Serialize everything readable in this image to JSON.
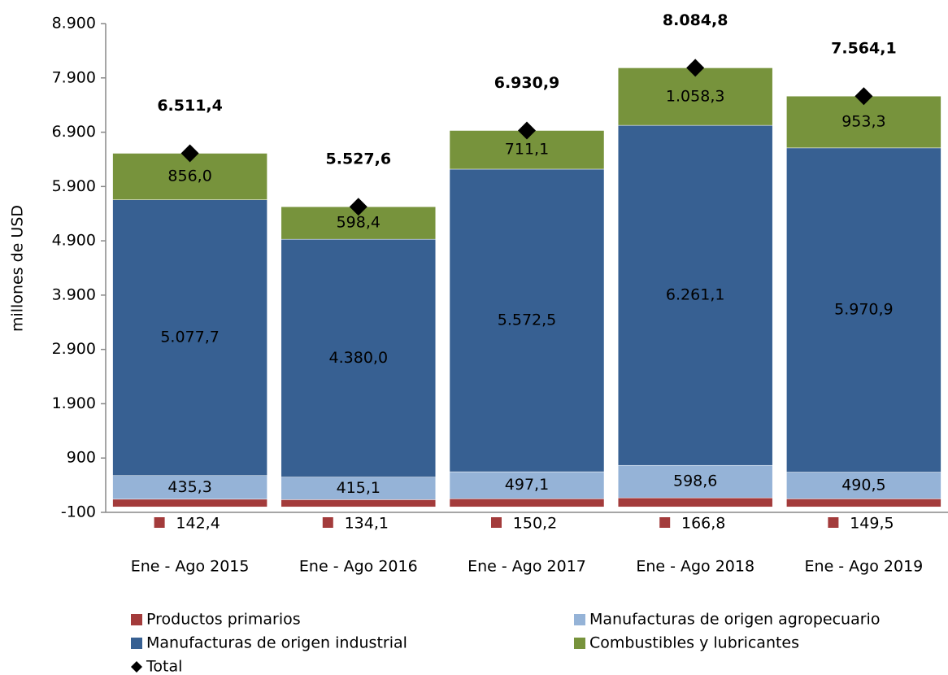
{
  "chart_data": {
    "type": "stacked_bar",
    "y_label": "millones de  USD",
    "categories": [
      "Ene - Ago 2015",
      "Ene - Ago 2016",
      "Ene - Ago 2017",
      "Ene - Ago 2018",
      "Ene - Ago 2019"
    ],
    "series": [
      {
        "name": "Productos primarios",
        "color": "#a33b3b",
        "values": [
          142.4,
          134.1,
          150.2,
          166.8,
          149.5
        ],
        "value_labels": [
          "142,4",
          "134,1",
          "150,2",
          "166,8",
          "149,5"
        ]
      },
      {
        "name": "Manufacturas de origen agropecuario",
        "color": "#95b3d7",
        "values": [
          435.3,
          415.1,
          497.1,
          598.6,
          490.5
        ],
        "value_labels": [
          "435,3",
          "415,1",
          "497,1",
          "598,6",
          "490,5"
        ]
      },
      {
        "name": "Manufacturas de origen industrial",
        "color": "#376092",
        "values": [
          5077.7,
          4380.0,
          5572.5,
          6261.1,
          5970.9
        ],
        "value_labels": [
          "5.077,7",
          "4.380,0",
          "5.572,5",
          "6.261,1",
          "5.970,9"
        ]
      },
      {
        "name": "Combustibles y lubricantes",
        "color": "#77933c",
        "values": [
          856.0,
          598.4,
          711.1,
          1058.3,
          953.3
        ],
        "value_labels": [
          "856,0",
          "598,4",
          "711,1",
          "1.058,3",
          "953,3"
        ]
      },
      {
        "name": "Total",
        "color": "#000000",
        "marker": "diamond",
        "values": [
          6511.4,
          5527.6,
          6930.9,
          8084.8,
          7564.1
        ],
        "value_labels": [
          "6.511,4",
          "5.527,6",
          "6.930,9",
          "8.084,8",
          "7.564,1"
        ]
      }
    ],
    "ylim": [
      -100,
      8900
    ],
    "yticks": [
      -100,
      900,
      {
        "value": 1900,
        "label": "1.900"
      },
      {
        "value": 2900,
        "label": "2.900"
      },
      {
        "value": 3900,
        "label": "3.900"
      },
      {
        "value": 4900,
        "label": "4.900"
      },
      {
        "value": 5900,
        "label": "5.900"
      },
      {
        "value": 6900,
        "label": "6.900"
      },
      {
        "value": 7900,
        "label": "7.900"
      },
      {
        "value": 8900,
        "label": "8.900"
      }
    ],
    "grid": false
  }
}
